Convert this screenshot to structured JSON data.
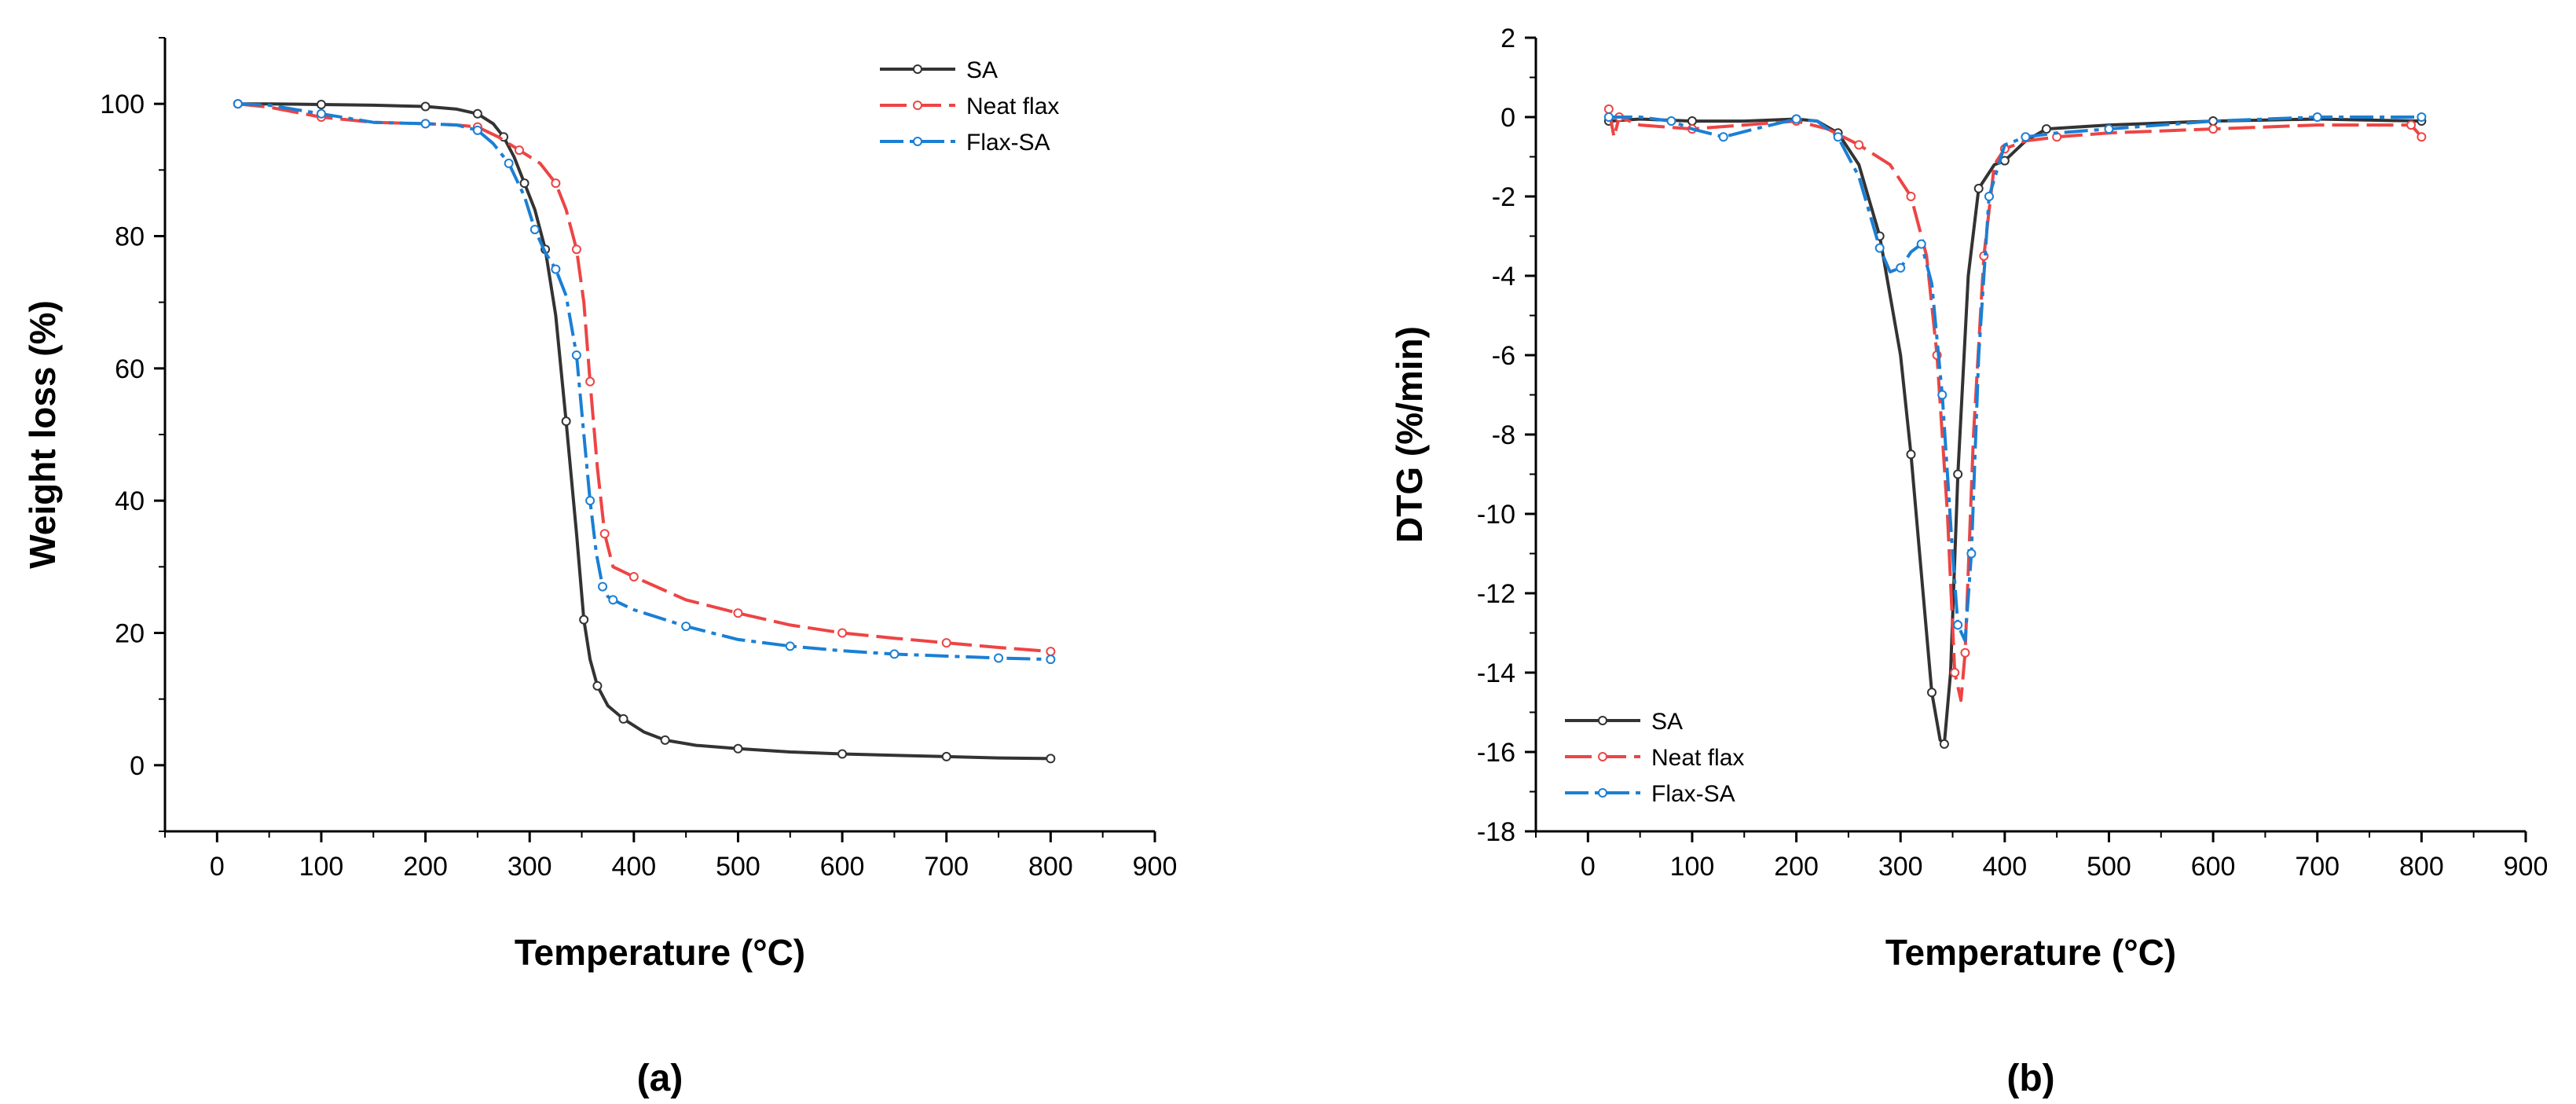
{
  "chart_data": [
    {
      "type": "line",
      "panel_label": "(a)",
      "xlabel": "Temperature (°C)",
      "ylabel": "Weight loss (%)",
      "xlim": [
        -50,
        900
      ],
      "ylim": [
        -10,
        110
      ],
      "x_ticks": [
        0,
        100,
        200,
        300,
        400,
        500,
        600,
        700,
        800,
        900
      ],
      "y_ticks": [
        0,
        20,
        40,
        60,
        80,
        100
      ],
      "legend_position": "top-right",
      "series": [
        {
          "name": "SA",
          "color": "#333333",
          "dash": "solid",
          "x": [
            20,
            50,
            100,
            150,
            200,
            230,
            250,
            265,
            275,
            285,
            295,
            305,
            315,
            325,
            335,
            345,
            352,
            358,
            365,
            375,
            390,
            410,
            430,
            460,
            500,
            550,
            600,
            650,
            700,
            750,
            800
          ],
          "y": [
            100,
            100,
            99.9,
            99.8,
            99.6,
            99.2,
            98.5,
            97,
            95,
            92,
            88,
            84,
            78,
            68,
            52,
            35,
            22,
            16,
            12,
            9,
            7,
            5,
            3.8,
            3,
            2.5,
            2,
            1.7,
            1.5,
            1.3,
            1.1,
            1
          ]
        },
        {
          "name": "Neat flax",
          "color": "#ee4444",
          "dash": "long-dash",
          "x": [
            20,
            50,
            100,
            150,
            200,
            230,
            250,
            270,
            290,
            310,
            325,
            335,
            345,
            352,
            358,
            365,
            372,
            380,
            400,
            450,
            500,
            550,
            600,
            650,
            700,
            750,
            800
          ],
          "y": [
            100,
            99.5,
            98,
            97.2,
            97,
            96.8,
            96.5,
            95,
            93,
            91,
            88,
            84,
            78,
            70,
            58,
            45,
            35,
            30,
            28.5,
            25,
            23,
            21.2,
            20,
            19.2,
            18.5,
            17.8,
            17.2
          ]
        },
        {
          "name": "Flax-SA",
          "color": "#1a7fd4",
          "dash": "dash-dot",
          "x": [
            20,
            50,
            100,
            150,
            200,
            230,
            250,
            265,
            280,
            295,
            305,
            315,
            325,
            335,
            345,
            352,
            358,
            364,
            370,
            375,
            380,
            400,
            450,
            500,
            550,
            600,
            650,
            700,
            750,
            800
          ],
          "y": [
            100,
            99.8,
            98.5,
            97.2,
            97,
            96.8,
            96,
            94,
            91,
            86,
            81,
            77.5,
            75,
            71,
            62,
            50,
            40,
            32,
            27,
            25.5,
            25,
            23.5,
            21,
            19,
            18,
            17.3,
            16.8,
            16.5,
            16.2,
            16
          ]
        }
      ]
    },
    {
      "type": "line",
      "panel_label": "(b)",
      "xlabel": "Temperature (°C)",
      "ylabel": "DTG (%/min)",
      "xlim": [
        -50,
        900
      ],
      "ylim": [
        -18,
        2
      ],
      "x_ticks": [
        0,
        100,
        200,
        300,
        400,
        500,
        600,
        700,
        800,
        900
      ],
      "y_ticks": [
        -18,
        -16,
        -14,
        -12,
        -10,
        -8,
        -6,
        -4,
        -2,
        0,
        2
      ],
      "legend_position": "bottom-left",
      "series": [
        {
          "name": "SA",
          "color": "#333333",
          "dash": "solid",
          "x": [
            20,
            50,
            100,
            150,
            200,
            220,
            240,
            260,
            280,
            300,
            310,
            320,
            330,
            338,
            342,
            348,
            355,
            365,
            375,
            390,
            400,
            420,
            440,
            500,
            600,
            700,
            800
          ],
          "y": [
            -0.1,
            -0.05,
            -0.1,
            -0.1,
            -0.05,
            -0.1,
            -0.4,
            -1.2,
            -3,
            -6,
            -8.5,
            -11.5,
            -14.5,
            -15.7,
            -15.8,
            -14,
            -9,
            -4,
            -1.8,
            -1.2,
            -1.1,
            -0.6,
            -0.3,
            -0.2,
            -0.1,
            -0.05,
            -0.1
          ]
        },
        {
          "name": "Neat flax",
          "color": "#ee4444",
          "dash": "long-dash",
          "x": [
            20,
            25,
            30,
            50,
            100,
            150,
            200,
            230,
            260,
            290,
            310,
            325,
            335,
            345,
            352,
            358,
            362,
            370,
            380,
            390,
            400,
            420,
            450,
            500,
            600,
            700,
            790,
            800
          ],
          "y": [
            0.2,
            -0.5,
            0,
            -0.2,
            -0.3,
            -0.2,
            -0.1,
            -0.3,
            -0.7,
            -1.2,
            -2,
            -3.5,
            -6,
            -10,
            -14,
            -14.7,
            -13.5,
            -8,
            -3.5,
            -1.2,
            -0.8,
            -0.6,
            -0.5,
            -0.4,
            -0.3,
            -0.2,
            -0.2,
            -0.5
          ]
        },
        {
          "name": "Flax-SA",
          "color": "#1a7fd4",
          "dash": "dash-dot",
          "x": [
            20,
            50,
            80,
            100,
            130,
            160,
            200,
            220,
            240,
            260,
            280,
            290,
            300,
            310,
            320,
            330,
            340,
            350,
            355,
            362,
            368,
            375,
            385,
            400,
            420,
            450,
            500,
            600,
            700,
            800
          ],
          "y": [
            0,
            0,
            -0.1,
            -0.3,
            -0.5,
            -0.3,
            -0.05,
            -0.1,
            -0.5,
            -1.5,
            -3.3,
            -3.9,
            -3.8,
            -3.4,
            -3.2,
            -4.2,
            -7,
            -11,
            -12.8,
            -13.2,
            -11,
            -6,
            -2,
            -0.7,
            -0.5,
            -0.4,
            -0.3,
            -0.1,
            0,
            0
          ]
        }
      ]
    }
  ]
}
